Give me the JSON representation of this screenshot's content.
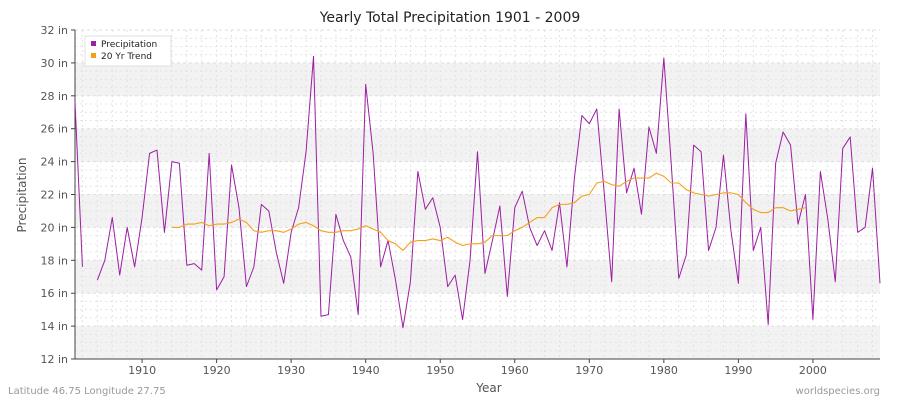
{
  "chart_data": {
    "type": "line",
    "title": "Yearly Total Precipitation 1901 - 2009",
    "xlabel": "Year",
    "ylabel": "Precipitation",
    "xlim": [
      1901,
      2009
    ],
    "ylim": [
      12,
      32
    ],
    "x_ticks": [
      1910,
      1920,
      1930,
      1940,
      1950,
      1960,
      1970,
      1980,
      1990,
      2000
    ],
    "y_ticks": [
      {
        "value": 12,
        "label": "12 in"
      },
      {
        "value": 14,
        "label": "14 in"
      },
      {
        "value": 16,
        "label": "16 in"
      },
      {
        "value": 18,
        "label": "18 in"
      },
      {
        "value": 20,
        "label": "20 in"
      },
      {
        "value": 22,
        "label": "22 in"
      },
      {
        "value": 24,
        "label": "24 in"
      },
      {
        "value": 26,
        "label": "26 in"
      },
      {
        "value": 28,
        "label": "28 in"
      },
      {
        "value": 30,
        "label": "30 in"
      },
      {
        "value": 32,
        "label": "32 in"
      }
    ],
    "grid": true,
    "legend_position": "top-left",
    "series": [
      {
        "name": "Precipitation",
        "color": "#9b1fa3",
        "points": [
          [
            1901,
            27.6
          ],
          [
            1902,
            17.6
          ],
          [
            1904,
            16.8
          ],
          [
            1905,
            18.0
          ],
          [
            1906,
            20.6
          ],
          [
            1907,
            17.1
          ],
          [
            1908,
            20.0
          ],
          [
            1909,
            17.6
          ],
          [
            1910,
            20.6
          ],
          [
            1911,
            24.5
          ],
          [
            1912,
            24.7
          ],
          [
            1913,
            19.7
          ],
          [
            1914,
            24.0
          ],
          [
            1915,
            23.9
          ],
          [
            1916,
            17.7
          ],
          [
            1917,
            17.8
          ],
          [
            1918,
            17.4
          ],
          [
            1919,
            24.5
          ],
          [
            1920,
            16.2
          ],
          [
            1921,
            17.0
          ],
          [
            1922,
            23.8
          ],
          [
            1923,
            21.2
          ],
          [
            1924,
            16.4
          ],
          [
            1925,
            17.6
          ],
          [
            1926,
            21.4
          ],
          [
            1927,
            21.0
          ],
          [
            1928,
            18.5
          ],
          [
            1929,
            16.6
          ],
          [
            1930,
            19.7
          ],
          [
            1931,
            21.2
          ],
          [
            1932,
            24.6
          ],
          [
            1933,
            30.4
          ],
          [
            1934,
            14.6
          ],
          [
            1935,
            14.7
          ],
          [
            1936,
            20.8
          ],
          [
            1937,
            19.2
          ],
          [
            1938,
            18.2
          ],
          [
            1939,
            14.7
          ],
          [
            1940,
            28.7
          ],
          [
            1941,
            24.5
          ],
          [
            1942,
            17.6
          ],
          [
            1943,
            19.2
          ],
          [
            1944,
            16.8
          ],
          [
            1945,
            13.9
          ],
          [
            1946,
            16.7
          ],
          [
            1947,
            23.4
          ],
          [
            1948,
            21.1
          ],
          [
            1949,
            21.8
          ],
          [
            1950,
            20.0
          ],
          [
            1951,
            16.4
          ],
          [
            1952,
            17.1
          ],
          [
            1953,
            14.4
          ],
          [
            1954,
            18.0
          ],
          [
            1955,
            24.6
          ],
          [
            1956,
            17.2
          ],
          [
            1957,
            19.2
          ],
          [
            1958,
            21.3
          ],
          [
            1959,
            15.8
          ],
          [
            1960,
            21.2
          ],
          [
            1961,
            22.2
          ],
          [
            1962,
            20.0
          ],
          [
            1963,
            18.9
          ],
          [
            1964,
            19.8
          ],
          [
            1965,
            18.6
          ],
          [
            1966,
            21.5
          ],
          [
            1967,
            17.6
          ],
          [
            1968,
            23.0
          ],
          [
            1969,
            26.8
          ],
          [
            1970,
            26.3
          ],
          [
            1971,
            27.2
          ],
          [
            1972,
            22.1
          ],
          [
            1973,
            16.7
          ],
          [
            1974,
            27.2
          ],
          [
            1975,
            22.1
          ],
          [
            1976,
            23.6
          ],
          [
            1977,
            20.8
          ],
          [
            1978,
            26.1
          ],
          [
            1979,
            24.5
          ],
          [
            1980,
            30.3
          ],
          [
            1981,
            23.8
          ],
          [
            1982,
            16.9
          ],
          [
            1983,
            18.3
          ],
          [
            1984,
            25.0
          ],
          [
            1985,
            24.6
          ],
          [
            1986,
            18.6
          ],
          [
            1987,
            20.0
          ],
          [
            1988,
            24.4
          ],
          [
            1989,
            19.8
          ],
          [
            1990,
            16.6
          ],
          [
            1991,
            26.9
          ],
          [
            1992,
            18.6
          ],
          [
            1993,
            20.0
          ],
          [
            1994,
            14.1
          ],
          [
            1995,
            23.9
          ],
          [
            1996,
            25.8
          ],
          [
            1997,
            25.0
          ],
          [
            1998,
            20.2
          ],
          [
            1999,
            22.0
          ],
          [
            2000,
            14.4
          ],
          [
            2001,
            23.4
          ],
          [
            2002,
            20.5
          ],
          [
            2003,
            16.7
          ],
          [
            2004,
            24.8
          ],
          [
            2005,
            25.5
          ],
          [
            2006,
            19.7
          ],
          [
            2007,
            20.0
          ],
          [
            2008,
            23.6
          ],
          [
            2009,
            16.6
          ]
        ]
      },
      {
        "name": "20 Yr Trend",
        "color": "#f5a01a",
        "points": [
          [
            1914,
            20.0
          ],
          [
            1915,
            20.0
          ],
          [
            1916,
            20.2
          ],
          [
            1917,
            20.2
          ],
          [
            1918,
            20.3
          ],
          [
            1919,
            20.1
          ],
          [
            1920,
            20.2
          ],
          [
            1921,
            20.2
          ],
          [
            1922,
            20.3
          ],
          [
            1923,
            20.5
          ],
          [
            1924,
            20.3
          ],
          [
            1925,
            19.8
          ],
          [
            1926,
            19.7
          ],
          [
            1927,
            19.8
          ],
          [
            1928,
            19.8
          ],
          [
            1929,
            19.7
          ],
          [
            1930,
            19.9
          ],
          [
            1931,
            20.2
          ],
          [
            1932,
            20.3
          ],
          [
            1933,
            20.1
          ],
          [
            1934,
            19.8
          ],
          [
            1935,
            19.7
          ],
          [
            1936,
            19.7
          ],
          [
            1937,
            19.8
          ],
          [
            1938,
            19.8
          ],
          [
            1939,
            19.9
          ],
          [
            1940,
            20.1
          ],
          [
            1941,
            19.9
          ],
          [
            1942,
            19.7
          ],
          [
            1943,
            19.2
          ],
          [
            1944,
            19.0
          ],
          [
            1945,
            18.6
          ],
          [
            1946,
            19.1
          ],
          [
            1947,
            19.2
          ],
          [
            1948,
            19.2
          ],
          [
            1949,
            19.3
          ],
          [
            1950,
            19.2
          ],
          [
            1951,
            19.4
          ],
          [
            1952,
            19.1
          ],
          [
            1953,
            18.9
          ],
          [
            1954,
            19.0
          ],
          [
            1955,
            19.0
          ],
          [
            1956,
            19.1
          ],
          [
            1957,
            19.5
          ],
          [
            1958,
            19.5
          ],
          [
            1959,
            19.5
          ],
          [
            1960,
            19.8
          ],
          [
            1961,
            20.0
          ],
          [
            1962,
            20.3
          ],
          [
            1963,
            20.6
          ],
          [
            1964,
            20.6
          ],
          [
            1965,
            21.2
          ],
          [
            1966,
            21.4
          ],
          [
            1967,
            21.4
          ],
          [
            1968,
            21.5
          ],
          [
            1969,
            21.9
          ],
          [
            1970,
            22.0
          ],
          [
            1971,
            22.7
          ],
          [
            1972,
            22.8
          ],
          [
            1973,
            22.6
          ],
          [
            1974,
            22.5
          ],
          [
            1975,
            22.8
          ],
          [
            1976,
            23.0
          ],
          [
            1977,
            23.0
          ],
          [
            1978,
            23.0
          ],
          [
            1979,
            23.3
          ],
          [
            1980,
            23.1
          ],
          [
            1981,
            22.7
          ],
          [
            1982,
            22.7
          ],
          [
            1983,
            22.3
          ],
          [
            1984,
            22.1
          ],
          [
            1985,
            22.0
          ],
          [
            1986,
            21.9
          ],
          [
            1987,
            22.0
          ],
          [
            1988,
            22.1
          ],
          [
            1989,
            22.1
          ],
          [
            1990,
            22.0
          ],
          [
            1991,
            21.5
          ],
          [
            1992,
            21.1
          ],
          [
            1993,
            20.9
          ],
          [
            1994,
            20.9
          ],
          [
            1995,
            21.2
          ],
          [
            1996,
            21.2
          ],
          [
            1997,
            21.0
          ],
          [
            1998,
            21.1
          ],
          [
            1999,
            21.2
          ]
        ]
      }
    ]
  },
  "footer": {
    "left": "Latitude 46.75 Longitude 27.75",
    "right": "worldspecies.org"
  }
}
